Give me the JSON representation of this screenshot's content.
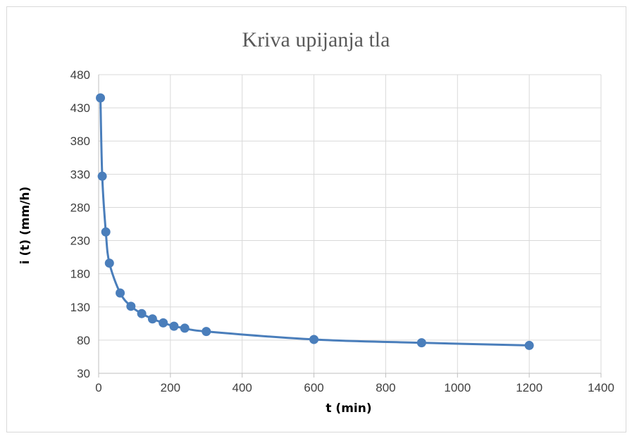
{
  "chart_data": {
    "type": "line",
    "title": "Kriva upijanja tla",
    "xlabel": "t (min)",
    "ylabel": "i (t) (mm/h)",
    "xlim": [
      0,
      1400
    ],
    "ylim": [
      30,
      480
    ],
    "xticks": [
      "0",
      "200",
      "400",
      "600",
      "800",
      "1000",
      "1200",
      "1400"
    ],
    "yticks": [
      "30",
      "80",
      "130",
      "180",
      "230",
      "280",
      "330",
      "380",
      "430",
      "480"
    ],
    "grid": true,
    "legend": "none",
    "series": [
      {
        "color": "#4a7ebb",
        "x": [
          5,
          10,
          20,
          30,
          60,
          90,
          120,
          150,
          180,
          210,
          240,
          300,
          600,
          900,
          1200
        ],
        "y": [
          445,
          327,
          243,
          196,
          151,
          131,
          120,
          112,
          106,
          101,
          98,
          93,
          81,
          76,
          72
        ]
      }
    ]
  }
}
